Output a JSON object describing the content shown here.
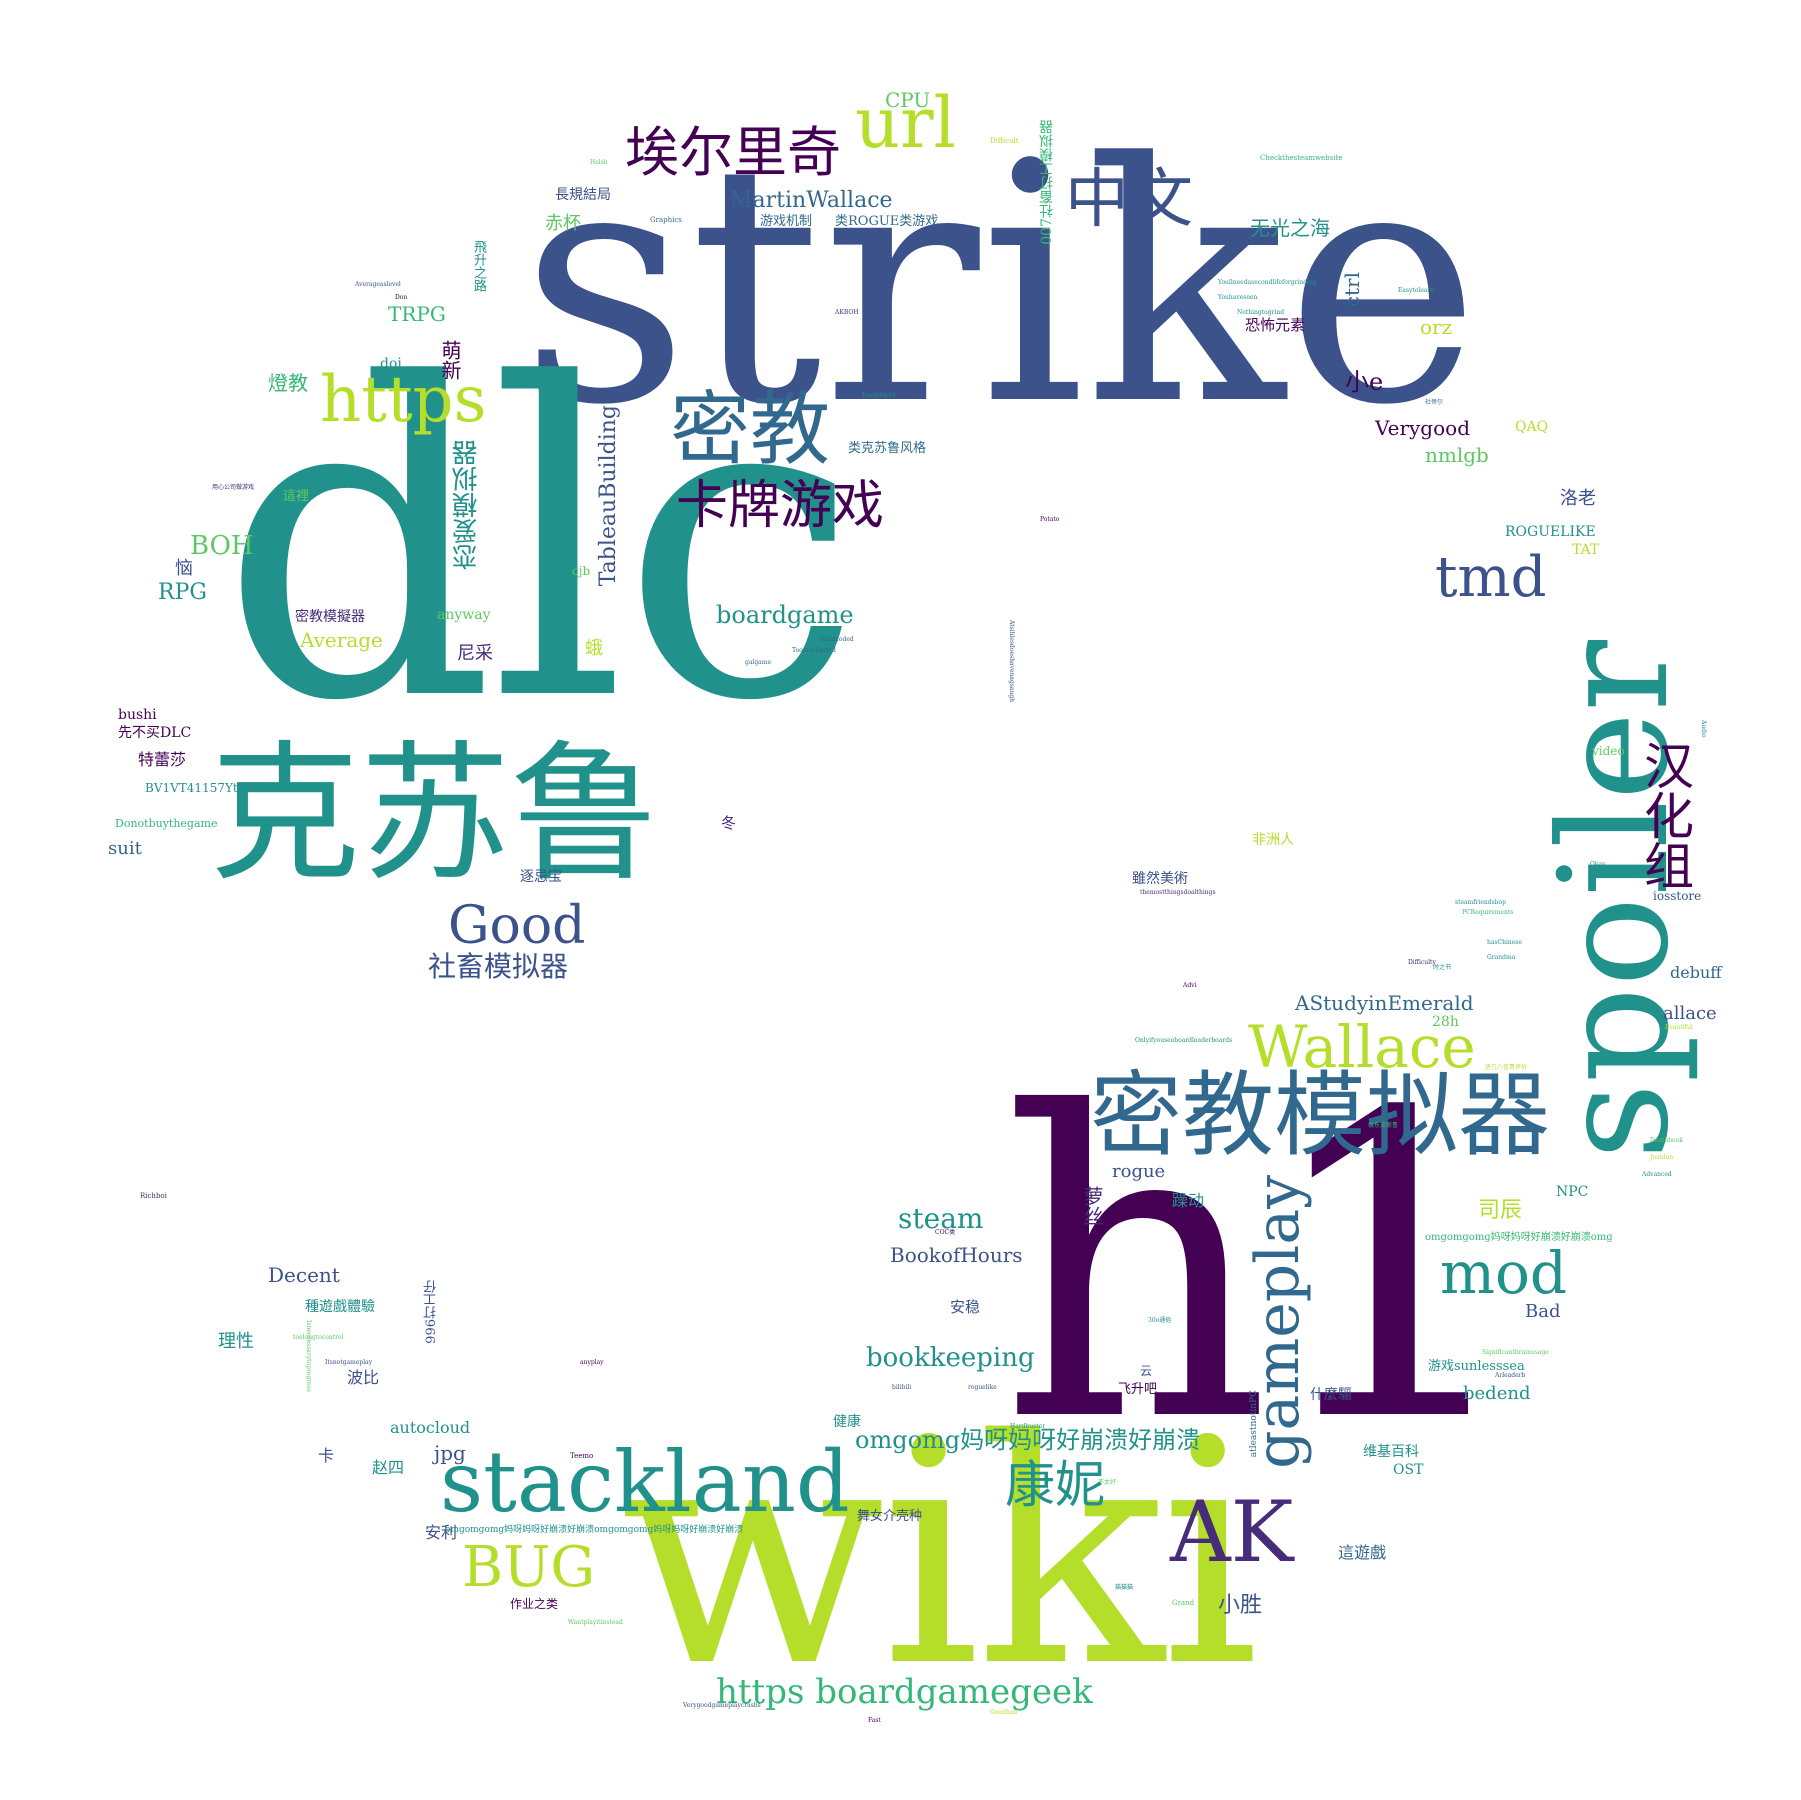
{
  "words": {
    "strike": "strike",
    "dlc": "dlc",
    "h1": "h1",
    "wiki": "wiki",
    "spoiler": "spoiler",
    "kesulu": "克苏鲁",
    "mijiao_sim": "密教模拟器",
    "stackland": "stackland",
    "mijiao": "密教",
    "aierliqi": "埃尔里奇",
    "url": "url",
    "zhongwen": "中文",
    "https": "https",
    "kapai": "卡牌游戏",
    "tmd": "tmd",
    "good": "Good",
    "wallace": "Wallace",
    "gameplay": "gameplay",
    "mod": "mod",
    "ak": "AK",
    "bug": "BUG",
    "kangni": "康妮",
    "hanhua": "汉化组",
    "https_bgg": "https boardgamegeek",
    "omg_long": "omgomg妈呀妈呀好崩溃好崩溃",
    "bookkeeping": "bookkeeping",
    "boardgame": "boardgame",
    "steam": "steam",
    "shechu": "社畜模拟器",
    "martinwallace": "MartinWallace",
    "tableau": "TableauBuilding",
    "lianai": "恋爱模拟器",
    "cpu": "CPU",
    "wuguang": "无光之海",
    "boh": "BOH",
    "rpg": "RPG",
    "trpg": "TRPG",
    "verygood": "Verygood",
    "orz": "orz",
    "ctrl": "ctrl",
    "xiaoe": "小e",
    "nmlgb": "nmlgb",
    "luolao": "洛老",
    "roguelike": "ROGUELIKE",
    "astudy": "AStudyinEmerald",
    "decent": "Decent",
    "bookofhours": "BookofHours",
    "rogue": "rogue",
    "sichen": "司辰",
    "xiaosheng": "小胜",
    "average": "Average",
    "autocloud": "autocloud",
    "jpg": "jpg",
    "bedend": "bedend",
    "bad": "Bad",
    "debuff": "debuff",
    "allace": "allace",
    "suit": "suit",
    "anyway": "anyway",
    "bushi": "bushi",
    "doi": "doi",
    "cjb": "cjb",
    "qaq": "QAQ",
    "tat": "TAT",
    "npc": "NPC",
    "ost": "OST",
    "28h": "28h",
    "iosstore": "iosstore",
    "video": "video",
    "chibei": "赤杯",
    "changgui": "長規結局",
    "youxijizhi": "游戏机制",
    "lei_rogue": "类ROGUE类游戏",
    "feisheng": "飛升之路",
    "mengxin": "萌新",
    "dengjiao": "燈教",
    "kongbu": "恐怖元素",
    "leikesulu": "类克苏鲁风格",
    "zheli": "這裡",
    "nao": "恼",
    "mijiao_sim2": "密教模擬器",
    "nicai": "尼采",
    "e": "蛾",
    "xianbumai": "先不买DLC",
    "telisha": "特蕾莎",
    "bv": "BV1VT41157Yt",
    "donotbuy": "Donotbuythegame",
    "dong": "冬",
    "zhujiaobao": "逐忌宝",
    "feizhou": "非洲人",
    "suiran": "雖然美術",
    "luoli": "萝丝",
    "zaodong": "躁动",
    "omg_short": "omgomgomg妈呀妈呀好崩溃好崩溃omg",
    "anwen": "安稳",
    "zhongyouxi": "種遊戲體驗",
    "lixing": "理性",
    "jiankang": "健康",
    "feishengba": "飞升吧",
    "boby": "波比",
    "shenmeqi": "什麼驅",
    "youxisun": "游戏sunlesssea",
    "weiji": "维基百科",
    "ka": "卡",
    "zhaosi": "赵四",
    "anli": "安利",
    "wunv": "舞女介壳种",
    "zheyouxi": "這遊戲",
    "zuoye": "作业之类",
    "dagong996": "996打工仔",
    "dagong007": "007社畜打工模拟器",
    "omg_tiny": "omgomgomg妈呀妈呀好崩溃好崩溃omgomgomg妈呀妈呀好崩溃好崩溃",
    "yun": "云",
    "atleast": "atleastnotinPC",
    "tiny": [
      "Checkthesteamwebsite",
      "Difficult",
      "Graphics",
      "Averageaslevel",
      "Don",
      "Helsh",
      "Potato",
      "Richboi",
      "Teemo",
      "Grand",
      "Fast",
      "Hardbuster",
      "bilibili",
      "roguelike",
      "anyplay",
      "Itsnotgameplay",
      "Wantplayitinstead",
      "Goodbad",
      "steamfriendshop",
      "PCRequirements",
      "hasChinese",
      "Grandma",
      "Difficulty",
      "Beautiful",
      "Deathbook",
      "Justdon",
      "Advanced",
      "Audio",
      "Okay",
      "Toomuchgrind",
      "Hardcoded",
      "galgame",
      "Ijustplayed",
      "Youhaveseen",
      "Nothingtogrind",
      "Youllneedasecondlifeforgrinding",
      "Onlyifyouseeboardleaderboards",
      "Significantbrainusage",
      "Atsihlesdoeshavenagsaugh",
      "themostthingsdoalthings",
      "Isneccessarytoprogress",
      "toolongtocontrol",
      "Arleaderb",
      "Advi",
      "Easytolearn",
      "Verygoodgameplaycrashs",
      "AKBOH",
      "COC类",
      "30o通俗",
      "时之书",
      "社帝尔",
      "用心公司做游戏",
      "不太好",
      "猫猫猫",
      "极东流斯鲁",
      "坚几八佳哥评价"
    ]
  },
  "colors": {
    "dark_purple": "#440154",
    "indigo": "#3b528b",
    "teal": "#21918c",
    "green": "#5ec962",
    "lime": "#b5de2b",
    "steel": "#31688e",
    "mint": "#35b779",
    "violet": "#472c7a"
  }
}
